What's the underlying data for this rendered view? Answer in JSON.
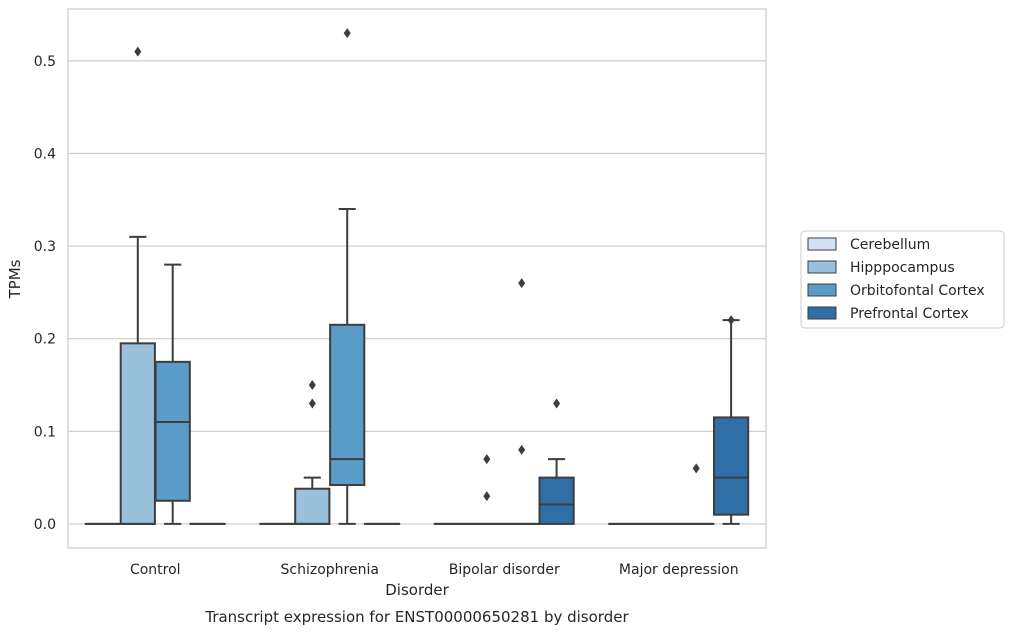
{
  "chart_data": {
    "type": "box",
    "title": "",
    "caption": "Transcript expression for ENST00000650281 by disorder",
    "xlabel": "Disorder",
    "ylabel": "TPMs",
    "ylim": [
      -0.026,
      0.556
    ],
    "yticks": [
      "0.0",
      "0.1",
      "0.2",
      "0.3",
      "0.4",
      "0.5"
    ],
    "categories": [
      "Control",
      "Schizophrenia",
      "Bipolar disorder",
      "Major depression"
    ],
    "grid": true,
    "legend_position": "right",
    "series": [
      {
        "name": "Cerebellum",
        "color": "#d1e2f2",
        "boxes": [
          {
            "q1": 0,
            "median": 0,
            "q3": 0,
            "whisker_low": 0,
            "whisker_high": 0,
            "outliers": []
          },
          {
            "q1": 0,
            "median": 0,
            "q3": 0,
            "whisker_low": 0,
            "whisker_high": 0,
            "outliers": []
          },
          {
            "q1": 0,
            "median": 0,
            "q3": 0,
            "whisker_low": 0,
            "whisker_high": 0,
            "outliers": []
          },
          {
            "q1": 0,
            "median": 0,
            "q3": 0,
            "whisker_low": 0,
            "whisker_high": 0,
            "outliers": []
          }
        ]
      },
      {
        "name": "Hipppocampus",
        "color": "#9ac1db",
        "boxes": [
          {
            "q1": 0,
            "median": 0,
            "q3": 0.195,
            "whisker_low": 0,
            "whisker_high": 0.31,
            "outliers": [
              0.51
            ]
          },
          {
            "q1": 0,
            "median": 0,
            "q3": 0.038,
            "whisker_low": 0,
            "whisker_high": 0.05,
            "outliers": [
              0.15,
              0.13
            ]
          },
          {
            "q1": 0,
            "median": 0,
            "q3": 0,
            "whisker_low": 0,
            "whisker_high": 0,
            "outliers": [
              0.07,
              0.03
            ]
          },
          {
            "q1": 0,
            "median": 0,
            "q3": 0,
            "whisker_low": 0,
            "whisker_high": 0,
            "outliers": []
          }
        ]
      },
      {
        "name": "Orbitofontal Cortex",
        "color": "#5b9bc8",
        "boxes": [
          {
            "q1": 0.025,
            "median": 0.11,
            "q3": 0.175,
            "whisker_low": 0,
            "whisker_high": 0.28,
            "outliers": []
          },
          {
            "q1": 0.042,
            "median": 0.07,
            "q3": 0.215,
            "whisker_low": 0,
            "whisker_high": 0.34,
            "outliers": [
              0.53
            ]
          },
          {
            "q1": 0,
            "median": 0,
            "q3": 0,
            "whisker_low": 0,
            "whisker_high": 0,
            "outliers": [
              0.26,
              0.08
            ]
          },
          {
            "q1": 0,
            "median": 0,
            "q3": 0,
            "whisker_low": 0,
            "whisker_high": 0,
            "outliers": [
              0.06
            ]
          }
        ]
      },
      {
        "name": "Prefrontal Cortex",
        "color": "#2f6ea7",
        "boxes": [
          {
            "q1": 0,
            "median": 0,
            "q3": 0,
            "whisker_low": 0,
            "whisker_high": 0,
            "outliers": []
          },
          {
            "q1": 0,
            "median": 0,
            "q3": 0,
            "whisker_low": 0,
            "whisker_high": 0,
            "outliers": []
          },
          {
            "q1": 0,
            "median": 0.021,
            "q3": 0.05,
            "whisker_low": 0,
            "whisker_high": 0.07,
            "outliers": [
              0.13
            ]
          },
          {
            "q1": 0.01,
            "median": 0.05,
            "q3": 0.115,
            "whisker_low": 0,
            "whisker_high": 0.22,
            "outliers": [
              0.22
            ]
          }
        ]
      }
    ]
  }
}
